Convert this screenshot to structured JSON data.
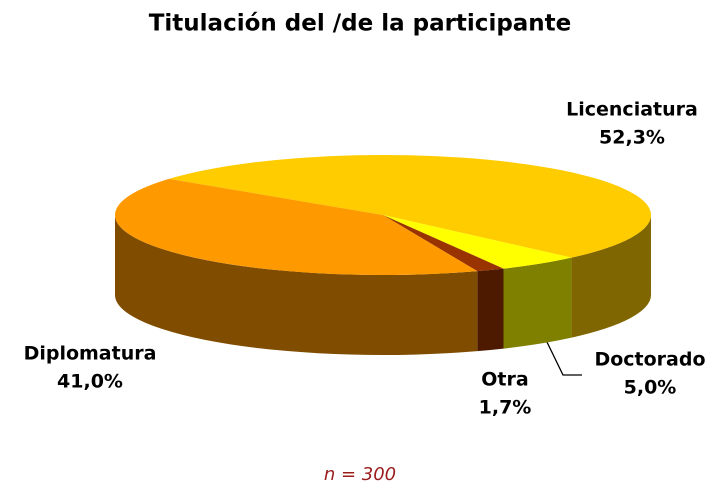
{
  "chart_data": {
    "type": "pie3d",
    "title": "Titulación del /de la participante",
    "categories": [
      "Licenciatura",
      "Doctorado",
      "Otra",
      "Diplomatura"
    ],
    "values": [
      52.3,
      5.0,
      1.7,
      41.0
    ],
    "value_labels": [
      "52,3%",
      "5,0%",
      "1,7%",
      "41,0%"
    ],
    "colors": [
      "#FFCC00",
      "#FFFF00",
      "#993300",
      "#FF9900"
    ],
    "side_colors": [
      "#806600",
      "#808000",
      "#4D1A00",
      "#804D00"
    ],
    "note": "n = 300"
  }
}
